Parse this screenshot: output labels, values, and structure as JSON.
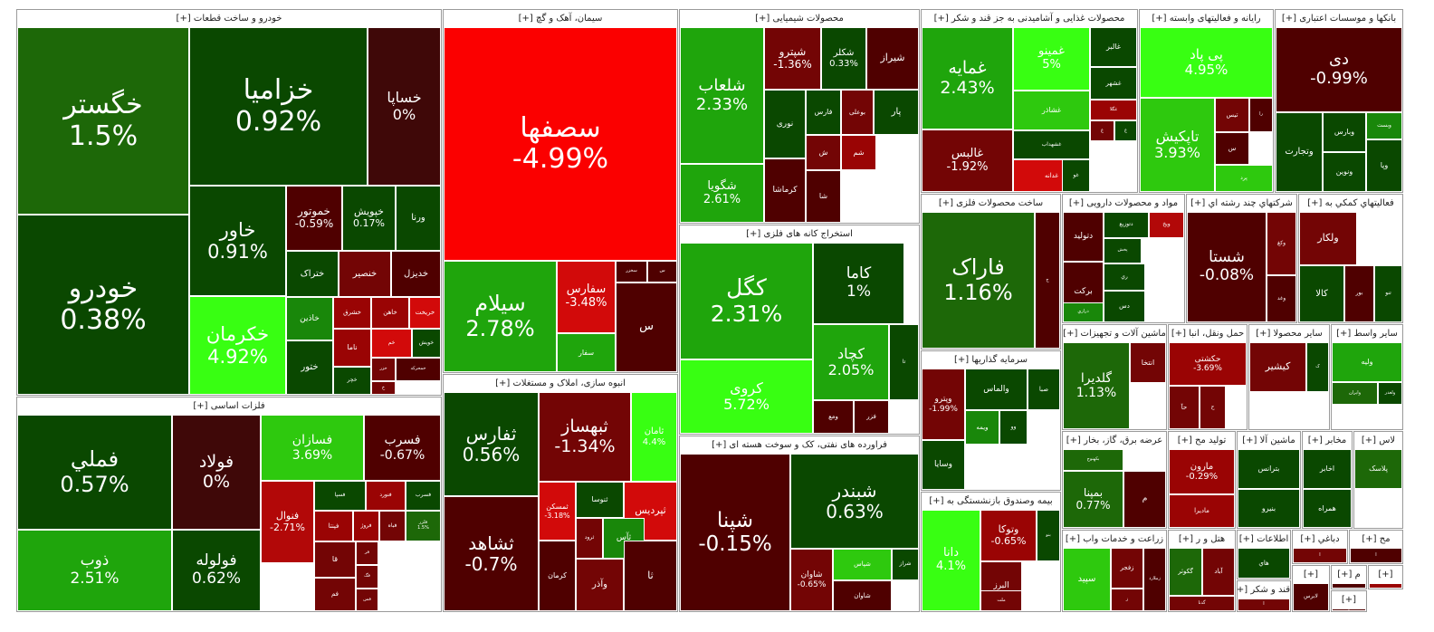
{
  "colors": {
    "-6": "#fb0000",
    "-5": "#d20a0a",
    "-4": "#b20808",
    "-3": "#9a0404",
    "-2": "#730505",
    "-1": "#4f0000",
    "0": "#3f0808",
    "1": "#0a4800",
    "2": "#1d6808",
    "3": "#19870a",
    "4": "#1fa50c",
    "5": "#2ec90e",
    "6": "#38ff12"
  },
  "sectors": [
    {
      "title": "خودرو و ساخت قطعات [+]",
      "tiles": [
        {
          "name": "خگستر",
          "change": "1.5%",
          "c": 2
        },
        {
          "name": "خودرو",
          "change": "0.38%",
          "c": 1
        },
        {
          "name": "خزامیا",
          "change": "0.92%",
          "c": 1
        },
        {
          "name": "خساپا",
          "change": "0%",
          "c": 0
        },
        {
          "name": "خاور",
          "change": "0.91%",
          "c": 1
        },
        {
          "name": "خکرمان",
          "change": "4.92%",
          "c": 6
        },
        {
          "name": "خموتور",
          "change": "-0.59%",
          "c": -1
        },
        {
          "name": "خپویش",
          "change": "0.17%",
          "c": 1
        },
        {
          "name": "ورنا",
          "change": "",
          "c": 1
        },
        {
          "name": "ختراک",
          "change": "",
          "c": 1
        },
        {
          "name": "خنصیر",
          "change": "",
          "c": -2
        },
        {
          "name": "خدیزل",
          "change": "",
          "c": -1
        },
        {
          "name": "خاذین",
          "change": "",
          "c": 3
        },
        {
          "name": "خشرق",
          "change": "",
          "c": -3
        },
        {
          "name": "خاهن",
          "change": "",
          "c": -3
        },
        {
          "name": "خریخت",
          "change": "",
          "c": -5
        },
        {
          "name": "خم",
          "change": "",
          "c": -5
        },
        {
          "name": "خویش",
          "change": "",
          "c": 1
        },
        {
          "name": "ختور",
          "change": "",
          "c": 1
        },
        {
          "name": "ناما",
          "change": "",
          "c": -3
        },
        {
          "name": "خزر",
          "change": "",
          "c": -2
        },
        {
          "name": "خمحرکه",
          "change": "",
          "c": -1
        },
        {
          "name": "خچر",
          "change": "",
          "c": 1
        },
        {
          "name": "خ",
          "change": "",
          "c": -2
        }
      ]
    },
    {
      "title": "سیمان، آهک و گچ [+]",
      "tiles": [
        {
          "name": "سصفها",
          "change": "-4.99%",
          "c": -6
        },
        {
          "name": "سیلام",
          "change": "2.78%",
          "c": 4
        },
        {
          "name": "سفارس",
          "change": "-3.48%",
          "c": -5
        },
        {
          "name": "سخزر",
          "change": "",
          "c": -1
        },
        {
          "name": "س",
          "change": "",
          "c": -1
        },
        {
          "name": "سفار",
          "change": "",
          "c": 4
        },
        {
          "name": "س",
          "change": "",
          "c": -1
        }
      ]
    },
    {
      "title": "انبوه سازی، املاک و مستغلات [+]",
      "tiles": [
        {
          "name": "ثفارس",
          "change": "0.56%",
          "c": 1
        },
        {
          "name": "ثشاهد",
          "change": "-0.7%",
          "c": -1
        },
        {
          "name": "ثبهساز",
          "change": "-1.34%",
          "c": -2
        },
        {
          "name": "ثامان",
          "change": "4.4%",
          "c": 6
        },
        {
          "name": "ثمسکن",
          "change": "-3.18%",
          "c": -5
        },
        {
          "name": "ثنوسا",
          "change": "",
          "c": 1
        },
        {
          "name": "ثپردیس",
          "change": "",
          "c": -5
        },
        {
          "name": "ثرود",
          "change": "",
          "c": -2
        },
        {
          "name": "ثآس",
          "change": "",
          "c": 3
        },
        {
          "name": "کرمان",
          "change": "",
          "c": -1
        },
        {
          "name": "ثا",
          "change": "",
          "c": -1
        },
        {
          "name": "وآذر",
          "change": "",
          "c": -2
        }
      ]
    },
    {
      "title": "محصولات شیمیایی [+]",
      "tiles": [
        {
          "name": "شلعاب",
          "change": "2.33%",
          "c": 4
        },
        {
          "name": "شپترو",
          "change": "-1.36%",
          "c": -2
        },
        {
          "name": "شکلر",
          "change": "0.33%",
          "c": 1
        },
        {
          "name": "شیراز",
          "change": "",
          "c": -1
        },
        {
          "name": "نوری",
          "change": "",
          "c": 1
        },
        {
          "name": "فارس",
          "change": "",
          "c": 1
        },
        {
          "name": "بوعلی",
          "change": "",
          "c": -2
        },
        {
          "name": "پار",
          "change": "",
          "c": 1
        },
        {
          "name": "شگویا",
          "change": "2.61%",
          "c": 4
        },
        {
          "name": "کرماشا",
          "change": "",
          "c": -1
        },
        {
          "name": "ش",
          "change": "",
          "c": -2
        },
        {
          "name": "شم",
          "change": "",
          "c": -3
        },
        {
          "name": "شا",
          "change": "",
          "c": -1
        }
      ]
    },
    {
      "title": "استخراج کانه های فلزی [+]",
      "tiles": [
        {
          "name": "کگل",
          "change": "2.31%",
          "c": 4
        },
        {
          "name": "کاما",
          "change": "1%",
          "c": 1
        },
        {
          "name": "کچاد",
          "change": "2.05%",
          "c": 4
        },
        {
          "name": "تا",
          "change": "",
          "c": 1
        },
        {
          "name": "کروی",
          "change": "5.72%",
          "c": 6
        },
        {
          "name": "ومع",
          "change": "",
          "c": -1
        },
        {
          "name": "فزر",
          "change": "",
          "c": -1
        }
      ]
    },
    {
      "title": "فراورده های نفتی، کک و سوخت هسته ای [+]",
      "tiles": [
        {
          "name": "شپنا",
          "change": "-0.15%",
          "c": -1
        },
        {
          "name": "شبندر",
          "change": "0.63%",
          "c": 1
        },
        {
          "name": "شاوان",
          "change": "-0.65%",
          "c": -2
        },
        {
          "name": "شپاس",
          "change": "",
          "c": 5
        },
        {
          "name": "شراز",
          "change": "",
          "c": 1
        },
        {
          "name": "شاوان",
          "change": "",
          "c": -1
        }
      ]
    },
    {
      "title": "محصولات غذایی و آشامیدنی به جز قند و شکر [+]",
      "tiles": [
        {
          "name": "غمایه",
          "change": "2.43%",
          "c": 4
        },
        {
          "name": "غمینو",
          "change": "5%",
          "c": 6
        },
        {
          "name": "غالبر",
          "change": "",
          "c": 1
        },
        {
          "name": "غشاذر",
          "change": "",
          "c": 5
        },
        {
          "name": "غشهر",
          "change": "",
          "c": 1
        },
        {
          "name": "غگلا",
          "change": "",
          "c": -3
        },
        {
          "name": "غالبس",
          "change": "-1.92%",
          "c": -2
        },
        {
          "name": "غشهداب",
          "change": "",
          "c": 1
        },
        {
          "name": "غ",
          "change": "",
          "c": -2
        },
        {
          "name": "غ",
          "change": "",
          "c": 1
        },
        {
          "name": "غزر",
          "change": "",
          "c": 1
        },
        {
          "name": "غدانه",
          "change": "",
          "c": -5
        },
        {
          "name": "غو",
          "change": "",
          "c": 1
        }
      ]
    },
    {
      "title": "رایانه و فعالیتهای وابسته [+]",
      "tiles": [
        {
          "name": "پی پاد",
          "change": "4.95%",
          "c": 6
        },
        {
          "name": "تاپکیش",
          "change": "3.93%",
          "c": 5
        },
        {
          "name": "تیس",
          "change": "",
          "c": -2
        },
        {
          "name": "را",
          "change": "",
          "c": -1
        },
        {
          "name": "س",
          "change": "",
          "c": -1
        },
        {
          "name": "پرد",
          "change": "",
          "c": 5
        }
      ]
    },
    {
      "title": "بانکها و موسسات اعتباری [+]",
      "tiles": [
        {
          "name": "دی",
          "change": "-0.99%",
          "c": -1
        },
        {
          "name": "وبارس",
          "change": "",
          "c": 1
        },
        {
          "name": "وبست",
          "change": "",
          "c": 3
        },
        {
          "name": "وتجارت",
          "change": "",
          "c": 1
        },
        {
          "name": "ونوین",
          "change": "",
          "c": 1
        },
        {
          "name": "وپا",
          "change": "",
          "c": 1
        }
      ]
    },
    {
      "title": "فلزات اساسی [+]",
      "tiles": [
        {
          "name": "فملي",
          "change": "0.57%",
          "c": 1
        },
        {
          "name": "ذوب",
          "change": "2.51%",
          "c": 4
        },
        {
          "name": "فولاد",
          "change": "0%",
          "c": 0
        },
        {
          "name": "فولوله",
          "change": "0.62%",
          "c": 1
        },
        {
          "name": "فسازان",
          "change": "3.69%",
          "c": 5
        },
        {
          "name": "فسرب",
          "change": "-0.67%",
          "c": -1
        },
        {
          "name": "فنوال",
          "change": "-2.71%",
          "c": -4
        },
        {
          "name": "فسپا",
          "change": "",
          "c": 1
        },
        {
          "name": "فنورد",
          "change": "",
          "c": -3
        },
        {
          "name": "فسرب",
          "change": "",
          "c": 1
        },
        {
          "name": "فپنتا",
          "change": "",
          "c": -3
        },
        {
          "name": "فروژ",
          "change": "",
          "c": -3
        },
        {
          "name": "فباه",
          "change": "",
          "c": -2
        },
        {
          "name": "فلزر",
          "change": "1.5%",
          "c": 2
        },
        {
          "name": "قا",
          "change": "",
          "c": -2
        },
        {
          "name": "فر",
          "change": "",
          "c": -2
        },
        {
          "name": "فگ",
          "change": "",
          "c": -2
        },
        {
          "name": "فم",
          "change": "",
          "c": -2
        },
        {
          "name": "فس",
          "change": "",
          "c": -2
        }
      ]
    },
    {
      "title": "ساخت محصولات فلزی [+]",
      "tiles": [
        {
          "name": "فاراک",
          "change": "1.16%",
          "c": 2
        },
        {
          "name": "ج",
          "change": "",
          "c": -1
        }
      ]
    },
    {
      "title": "سرمایه گذاریها [+]",
      "tiles": [
        {
          "name": "وپترو",
          "change": "-1.99%",
          "c": -2
        },
        {
          "name": "والماس",
          "change": "",
          "c": 1
        },
        {
          "name": "صبا",
          "change": "",
          "c": 1
        },
        {
          "name": "ویمه",
          "change": "",
          "c": 3
        },
        {
          "name": "وو",
          "change": "",
          "c": 1
        },
        {
          "name": "وسایا",
          "change": "",
          "c": 1
        }
      ]
    },
    {
      "title": "بیمه وصندوق بازنشستگی به [+]",
      "tiles": [
        {
          "name": "دانا",
          "change": "4.1%",
          "c": 6
        },
        {
          "name": "وتوکا",
          "change": "-0.65%",
          "c": -3
        },
        {
          "name": "البرز",
          "change": "",
          "c": -2
        },
        {
          "name": "بنو",
          "change": "",
          "c": 1
        },
        {
          "name": "ملت",
          "change": "",
          "c": -2
        }
      ]
    },
    {
      "title": "مواد و محصولات دارویی [+]",
      "tiles": [
        {
          "name": "دتولید",
          "change": "",
          "c": -1
        },
        {
          "name": "دتوزیع",
          "change": "",
          "c": 1
        },
        {
          "name": "ویخ",
          "change": "",
          "c": -4
        },
        {
          "name": "پخش",
          "change": "",
          "c": 1
        },
        {
          "name": "برکت",
          "change": "",
          "c": -1
        },
        {
          "name": "ري",
          "change": "",
          "c": 1
        },
        {
          "name": "درازي",
          "change": "",
          "c": 3
        },
        {
          "name": "دس",
          "change": "",
          "c": 1
        }
      ]
    },
    {
      "title": "شرکتهاي چند رشته اي [+]",
      "tiles": [
        {
          "name": "شستا",
          "change": "-0.08%",
          "c": -1
        },
        {
          "name": "وکغ",
          "change": "",
          "c": -2
        },
        {
          "name": "وغد",
          "change": "",
          "c": -1
        }
      ]
    },
    {
      "title": "فعالیتهاي کمکي به [+]",
      "tiles": [
        {
          "name": "ولکار",
          "change": "",
          "c": -2
        },
        {
          "name": "کالا",
          "change": "",
          "c": 1
        },
        {
          "name": "بور",
          "change": "",
          "c": -1
        },
        {
          "name": "تنو",
          "change": "",
          "c": 1
        }
      ]
    },
    {
      "title": "ماشین آلات و تجهیزات [+]",
      "tiles": [
        {
          "name": "گلدیرا",
          "change": "1.13%",
          "c": 2
        },
        {
          "name": "انتخا",
          "change": "",
          "c": -2
        }
      ]
    },
    {
      "title": "حمل ونقل، انبا [+]",
      "tiles": [
        {
          "name": "حکشتی",
          "change": "-3.69%",
          "c": -3
        },
        {
          "name": "حآ",
          "change": "",
          "c": -2
        },
        {
          "name": "ح",
          "change": "",
          "c": -2
        }
      ]
    },
    {
      "title": "سایر محصولا [+]",
      "tiles": [
        {
          "name": "کیشیر",
          "change": "",
          "c": -2
        },
        {
          "name": "ک",
          "change": "",
          "c": 1
        }
      ]
    },
    {
      "title": "سایر واسط [+]",
      "tiles": [
        {
          "name": "ولیه",
          "change": "",
          "c": 4
        },
        {
          "name": "وایران",
          "change": "",
          "c": 2
        },
        {
          "name": "ولغدر",
          "change": "",
          "c": 1
        }
      ]
    },
    {
      "title": "عرضه برق، گاز، بخار [+]",
      "tiles": [
        {
          "name": "بکهنوج",
          "change": "",
          "c": 2
        },
        {
          "name": "بمپنا",
          "change": "0.77%",
          "c": 2
        },
        {
          "name": "م",
          "change": "",
          "c": -1
        }
      ]
    },
    {
      "title": "زراعت و خدمات واب [+]",
      "tiles": [
        {
          "name": "سپید",
          "change": "",
          "c": 5
        },
        {
          "name": "زفجر",
          "change": "",
          "c": -2
        },
        {
          "name": "ز",
          "change": "",
          "c": -2
        },
        {
          "name": "زملارد",
          "change": "",
          "c": -1
        }
      ]
    },
    {
      "title": "تولید مح [+]",
      "tiles": [
        {
          "name": "مارون",
          "change": "-0.29%",
          "c": -3
        },
        {
          "name": "مادیرا",
          "change": "",
          "c": -3
        }
      ]
    },
    {
      "title": "ماشین آلا [+]",
      "tiles": [
        {
          "name": "بترانس",
          "change": "",
          "c": 1
        },
        {
          "name": "بنیرو",
          "change": "",
          "c": 1
        }
      ]
    },
    {
      "title": "مخابر [+]",
      "tiles": [
        {
          "name": "اخابر",
          "change": "",
          "c": 1
        },
        {
          "name": "همراه",
          "change": "",
          "c": 1
        }
      ]
    },
    {
      "title": "لاس [+]",
      "tiles": [
        {
          "name": "پلاسک",
          "change": "",
          "c": 2
        }
      ]
    },
    {
      "title": "هتل و ر [+]",
      "tiles": [
        {
          "name": "گکوثر",
          "change": "",
          "c": 2
        },
        {
          "name": "آباد",
          "change": "",
          "c": -2
        },
        {
          "name": "گدنا",
          "change": "",
          "c": -2
        }
      ]
    },
    {
      "title": "اطلاعات [+]",
      "tiles": [
        {
          "name": "هاي",
          "change": "",
          "c": 1
        },
        {
          "name": "ا",
          "change": "",
          "c": 1
        }
      ]
    },
    {
      "title": "دباغي [+]",
      "tiles": [
        {
          "name": "ا",
          "change": "",
          "c": -2
        }
      ]
    },
    {
      "title": "مح [+]",
      "tiles": [
        {
          "name": "ا",
          "change": "",
          "c": -1
        }
      ]
    },
    {
      "title": "قند و شکر [+]",
      "tiles": [
        {
          "name": "ا",
          "change": "",
          "c": -2
        }
      ]
    },
    {
      "title": "[+]",
      "tiles": [
        {
          "name": "لابرس",
          "change": "",
          "c": -1
        }
      ]
    },
    {
      "title": "م [+]",
      "tiles": [
        {
          "name": "",
          "change": "",
          "c": -1
        }
      ]
    },
    {
      "title": "[+]",
      "tiles": [
        {
          "name": "",
          "change": "",
          "c": -3
        }
      ]
    },
    {
      "title": "[+]",
      "tiles": [
        {
          "name": "ا",
          "change": "",
          "c": -1
        }
      ]
    },
    {
      "title": "[+]",
      "tiles": [
        {
          "name": "ا",
          "change": "",
          "c": -1
        }
      ]
    }
  ]
}
